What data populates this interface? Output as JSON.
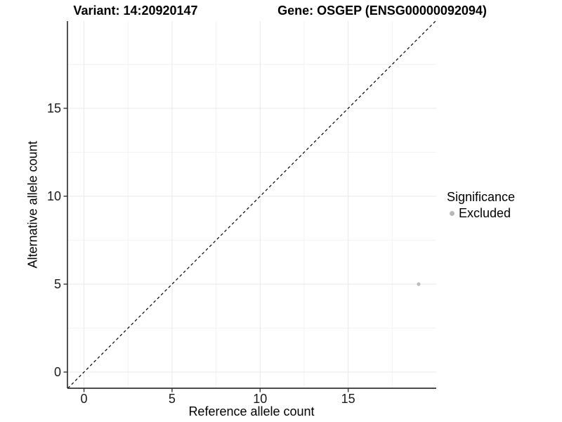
{
  "chart_data": {
    "type": "scatter",
    "title_left": "Variant: 14:20920147",
    "title_right": "Gene: OSGEP (ENSG00000092094)",
    "xlabel": "Reference allele count",
    "ylabel": "Alternative allele count",
    "x_ticks": [
      0,
      5,
      10,
      15
    ],
    "y_ticks": [
      0,
      5,
      10,
      15
    ],
    "x_minor_ticks": [
      2.5,
      7.5,
      12.5,
      17.5
    ],
    "y_minor_ticks": [
      2.5,
      7.5,
      12.5,
      17.5
    ],
    "xlim": [
      -0.94,
      20.0
    ],
    "ylim": [
      -0.92,
      19.96
    ],
    "grid": true,
    "series": [
      {
        "name": "Excluded",
        "color": "#bcbcbc",
        "points": [
          {
            "x": 19,
            "y": 5
          }
        ]
      }
    ],
    "reference_line": {
      "type": "identity",
      "style": "dashed",
      "color": "#000000"
    },
    "legend": {
      "title": "Significance",
      "position": "right",
      "items": [
        {
          "label": "Excluded",
          "color": "#b8b8b8"
        }
      ]
    },
    "colors": {
      "background": "#ffffff",
      "axis_line": "#333333",
      "tick_label": "#1a1a1a",
      "grid_major": "#e8e8e8",
      "grid_minor": "#f3f3f3"
    }
  }
}
